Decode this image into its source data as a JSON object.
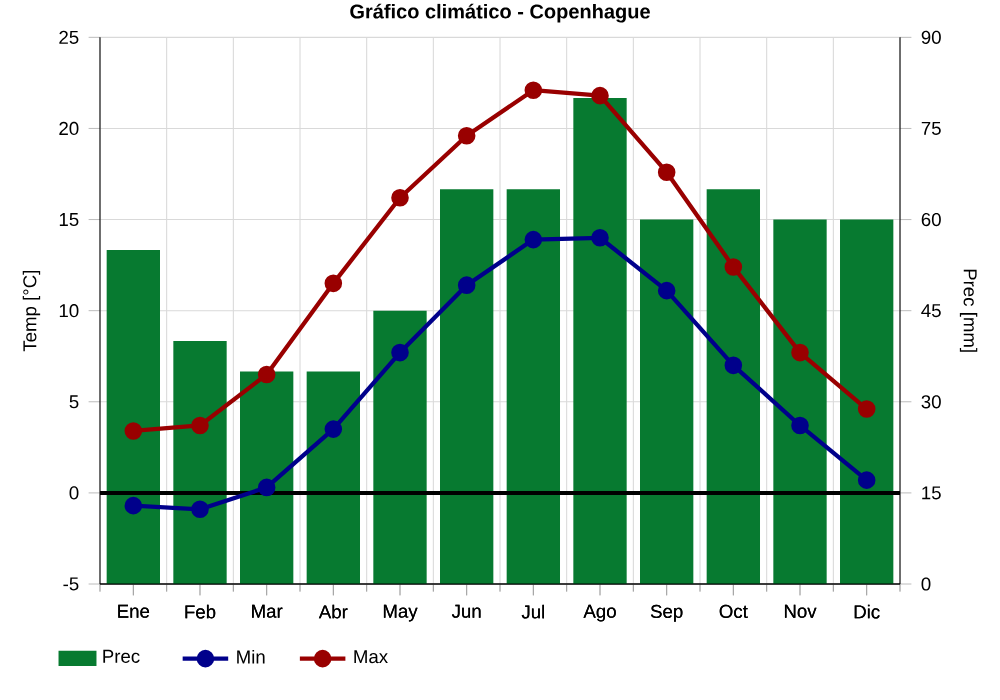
{
  "chart_data": {
    "type": "bar",
    "title": "Gráfico climático - Copenhague",
    "ylabel": "Temp [°C]",
    "y2label": "Prec [mm]",
    "categories": [
      "Ene",
      "Feb",
      "Mar",
      "Abr",
      "May",
      "Jun",
      "Jul",
      "Ago",
      "Sep",
      "Oct",
      "Nov",
      "Dic"
    ],
    "series": [
      {
        "name": "Prec",
        "axis": "y2",
        "color": "#077a30",
        "values": [
          55,
          40,
          35,
          35,
          45,
          65,
          65,
          80,
          60,
          65,
          60,
          60
        ]
      },
      {
        "name": "Min",
        "type": "line",
        "color": "#00008b",
        "values": [
          -0.7,
          -0.9,
          0.3,
          3.5,
          7.7,
          11.4,
          13.9,
          14.0,
          11.1,
          7.0,
          3.7,
          0.7
        ]
      },
      {
        "name": "Max",
        "type": "line",
        "color": "#990000",
        "values": [
          3.4,
          3.7,
          6.5,
          11.5,
          16.2,
          19.6,
          22.1,
          21.8,
          17.6,
          12.4,
          7.7,
          4.6
        ]
      }
    ],
    "ylim": [
      -5,
      25
    ],
    "yticks": [
      -5,
      0,
      5,
      10,
      15,
      20,
      25
    ],
    "y2lim": [
      0,
      90
    ],
    "y2ticks": [
      0,
      15,
      30,
      45,
      60,
      75,
      90
    ],
    "ref_lines": [
      {
        "axis": "y",
        "value": 0,
        "color": "#000000"
      }
    ],
    "grid": true,
    "legend": "bottom",
    "marker": "circle",
    "line_style": "solid"
  }
}
